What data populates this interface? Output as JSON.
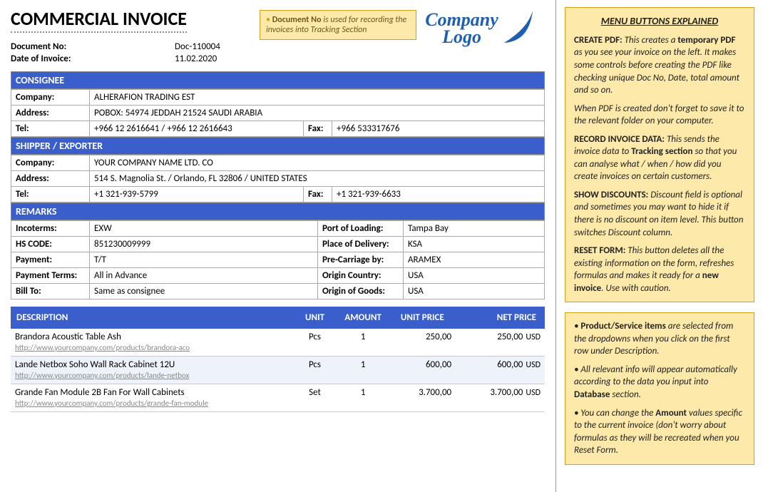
{
  "title": "COMMERCIAL INVOICE",
  "meta": {
    "docno_label": "Document No:",
    "docno": "Doc-110004",
    "date_label": "Date of Invoice:",
    "date": "11.02.2020"
  },
  "callout": {
    "bold": "Document No",
    "rest": " is used for recording the invoices into Tracking Section"
  },
  "logo": {
    "line1": "Company",
    "line2": "Logo",
    "color": "#1f5fb0"
  },
  "consignee": {
    "header": "CONSIGNEE",
    "company_label": "Company:",
    "company": "ALHERAFION TRADING EST",
    "address_label": "Address:",
    "address": "POBOX: 54974 JEDDAH 21524 SAUDI ARABIA",
    "tel_label": "Tel:",
    "tel": "+966 12 2616641 / +966 12 2616643",
    "fax_label": "Fax:",
    "fax": "+966 533317676"
  },
  "shipper": {
    "header": "SHIPPER / EXPORTER",
    "company_label": "Company:",
    "company": "YOUR COMPANY NAME LTD. CO",
    "address_label": "Address:",
    "address": "514 S. Magnolia St. / Orlando, FL 32806 / UNITED STATES",
    "tel_label": "Tel:",
    "tel": "+1 321-939-5799",
    "fax_label": "Fax:",
    "fax": "+1 321-939-6633"
  },
  "remarks": {
    "header": "REMARKS",
    "left": [
      {
        "label": "Incoterms:",
        "value": "EXW"
      },
      {
        "label": "HS CODE:",
        "value": "851230009999"
      },
      {
        "label": "Payment:",
        "value": "T/T"
      },
      {
        "label": "Payment Terms:",
        "value": "All in Advance"
      },
      {
        "label": "Bill To:",
        "value": "Same as consignee"
      }
    ],
    "right": [
      {
        "label": "Port of Loading:",
        "value": "Tampa Bay"
      },
      {
        "label": "Place of Delivery:",
        "value": "KSA"
      },
      {
        "label": "Pre-Carriage by:",
        "value": "ARAMEX"
      },
      {
        "label": "Origin Country:",
        "value": "USA"
      },
      {
        "label": "Origin of Goods:",
        "value": "USA"
      }
    ]
  },
  "items": {
    "headers": {
      "desc": "DESCRIPTION",
      "unit": "UNIT",
      "amount": "AMOUNT",
      "unit_price": "UNIT PRICE",
      "net_price": "NET PRICE"
    },
    "currency": "USD",
    "rows": [
      {
        "name": "Brandora Acoustic Table Ash",
        "link": "http://www.yourcompany.com/products/brandora-aco",
        "unit": "Pcs",
        "amount": "1",
        "unit_price": "250,00",
        "net_price": "250,00"
      },
      {
        "name": "Lande Netbox Soho Wall Rack Cabinet 12U",
        "link": "http://www.yourcompany.com/products/lande-netbox",
        "unit": "Pcs",
        "amount": "1",
        "unit_price": "600,00",
        "net_price": "600,00"
      },
      {
        "name": "Grande Fan Module 2B Fan For Wall Cabinets",
        "link": "http://www.yourcompany.com/products/grande-fan-module",
        "unit": "Set",
        "amount": "1",
        "unit_price": "3.700,00",
        "net_price": "3.700,00"
      }
    ]
  },
  "sidebar": {
    "title": "MENU BUTTONS EXPLAINED",
    "p1a": "CREATE PDF:",
    "p1b": " This creates a ",
    "p1c": "temporary PDF",
    "p1d": " as you see your invoice on the left. It makes some controls before creating the PDF like checking unique Doc No, Date, total amount and so on.",
    "p1e": "When PDF is created don't forget to save it to the relevant folder on your computer.",
    "p2a": "RECORD INVOICE DATA:",
    "p2b": " This sends the invoice data to ",
    "p2c": "Tracking section",
    "p2d": " so that you can analyse what / when / how did you create invoices on certain customers.",
    "p3a": "SHOW DISCOUNTS:",
    "p3b": " Discount field is optional and sometimes you may want to hide it if there is no discount on item level. This button switches Discount column.",
    "p4a": "RESET FORM:",
    "p4b": " This button deletes all the existing information on the form, refreshes formulas and makes it ready for a ",
    "p4c": "new invoice",
    "p4d": ". Use with caution.",
    "n2_1a": "• ",
    "n2_1b": "Product/Service items",
    "n2_1c": " are selected from the dropdowns when you click on the first row under Description.",
    "n2_2a": "• All relevant info will appear automatically according to the data you input into ",
    "n2_2b": "Database",
    "n2_2c": " section.",
    "n2_3a": "• You can change the ",
    "n2_3b": "Amount",
    "n2_3c": " values specific to the current invoice (don't worry about formulas as they will be recreated when you Reset Form."
  },
  "colors": {
    "section_bar": "#3a5fcd",
    "note_bg": "#fde9a9",
    "note_border": "#d4a017"
  }
}
